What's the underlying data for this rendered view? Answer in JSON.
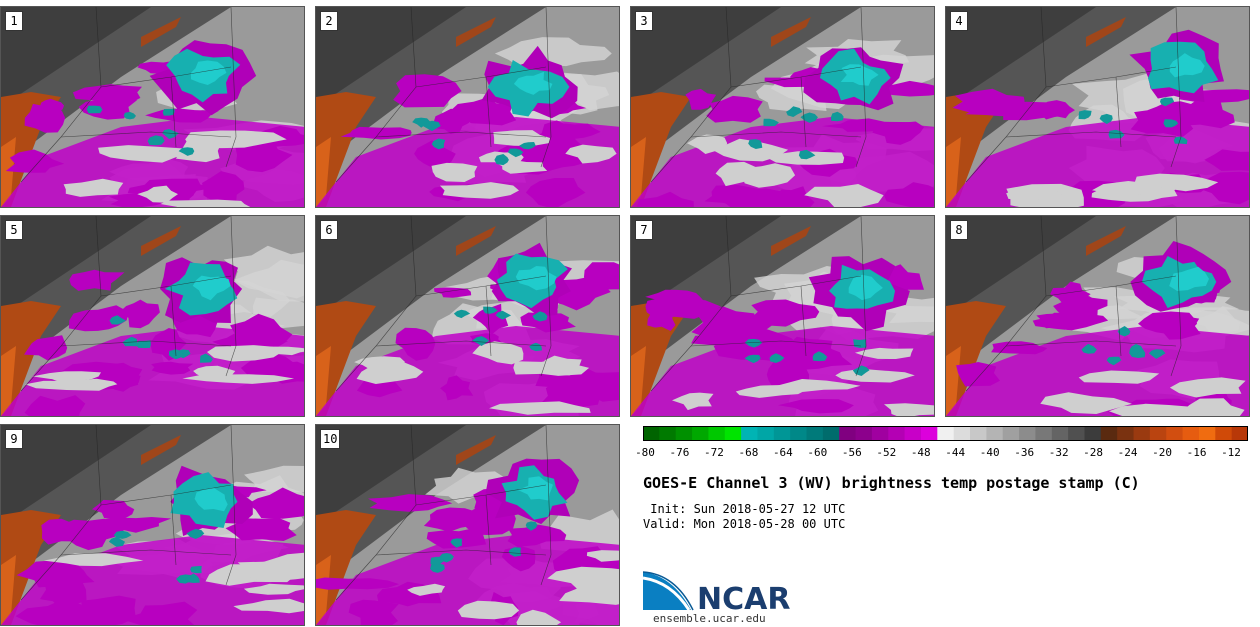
{
  "panels": [
    {
      "label": "1"
    },
    {
      "label": "2"
    },
    {
      "label": "3"
    },
    {
      "label": "4"
    },
    {
      "label": "5"
    },
    {
      "label": "6"
    },
    {
      "label": "7"
    },
    {
      "label": "8"
    },
    {
      "label": "9"
    },
    {
      "label": "10"
    }
  ],
  "colorbar": {
    "colors": [
      "#006400",
      "#007a00",
      "#009000",
      "#00a800",
      "#00c800",
      "#00e400",
      "#00b4b4",
      "#00a6a6",
      "#009696",
      "#008888",
      "#007a7a",
      "#006c6c",
      "#800080",
      "#8c008c",
      "#a000a0",
      "#b400b4",
      "#c800c8",
      "#dc00dc",
      "#f0f0f0",
      "#dcdcdc",
      "#c8c8c8",
      "#b4b4b4",
      "#a0a0a0",
      "#8c8c8c",
      "#787878",
      "#646464",
      "#505050",
      "#3c3c3c",
      "#5a2a10",
      "#7a3210",
      "#9a3a10",
      "#ba4410",
      "#d24e10",
      "#e65c10",
      "#f06c10",
      "#d04a08",
      "#b83808"
    ],
    "ticks": [
      "-80",
      "-76",
      "-72",
      "-68",
      "-64",
      "-60",
      "-56",
      "-52",
      "-48",
      "-44",
      "-40",
      "-36",
      "-32",
      "-28",
      "-24",
      "-20",
      "-16",
      "-12"
    ]
  },
  "title": "GOES-E Channel 3 (WV) brightness temp postage stamp (C)",
  "init": " Init: Sun 2018-05-27 12 UTC",
  "valid": "Valid: Mon 2018-05-28 00 UTC",
  "logo": {
    "text": "NCAR",
    "url": "ensemble.ucar.edu"
  }
}
